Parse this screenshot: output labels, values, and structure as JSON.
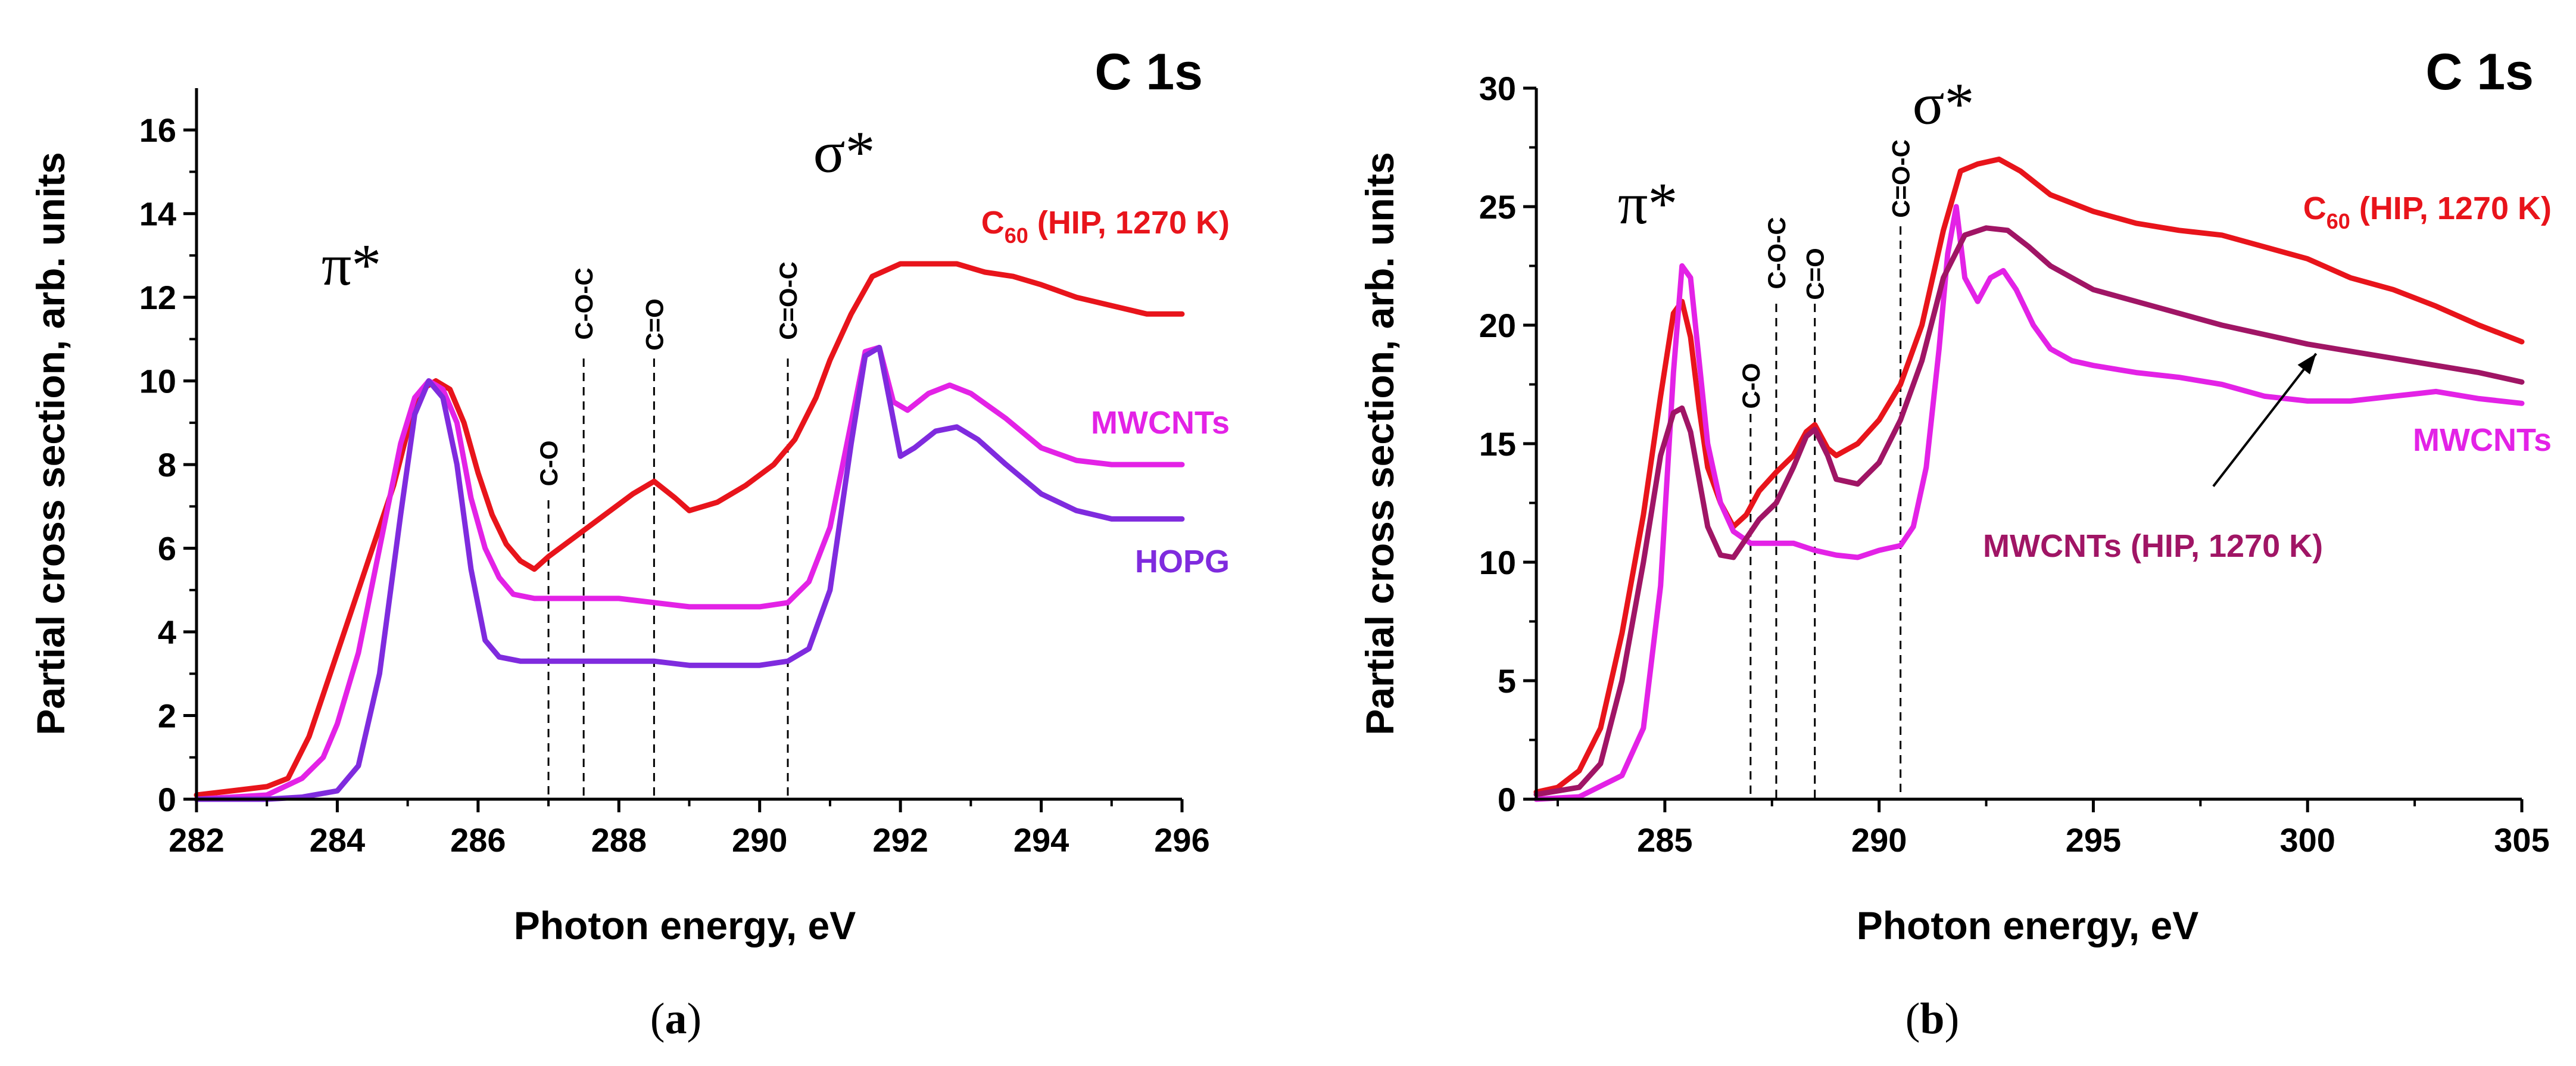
{
  "chart_data": [
    {
      "type": "line",
      "panel": "a",
      "title": "C 1s",
      "xlabel": "Photon energy, eV",
      "ylabel": "Partial cross section, arb. units",
      "xlim": [
        282,
        296
      ],
      "ylim": [
        0,
        17
      ],
      "xticks": [
        282,
        284,
        286,
        288,
        290,
        292,
        294,
        296
      ],
      "yticks": [
        0,
        2,
        4,
        6,
        8,
        10,
        12,
        14,
        16
      ],
      "peak_labels": [
        {
          "text": "π*",
          "x": 284.2,
          "y": 12.3
        },
        {
          "text": "σ*",
          "x": 291.2,
          "y": 15.0
        }
      ],
      "vlines": [
        {
          "label": "C-O",
          "x": 287.0
        },
        {
          "label": "C-O-C",
          "x": 287.5
        },
        {
          "label": "C=O",
          "x": 288.5
        },
        {
          "label": "C=O-C",
          "x": 290.4
        }
      ],
      "series": [
        {
          "name": "C60 (HIP, 1270 K)",
          "label_main": "C",
          "label_sub": "60",
          "label_rest": " (HIP, 1270  K)",
          "color": "#e8141b",
          "x": [
            282.0,
            282.5,
            283.0,
            283.3,
            283.6,
            283.9,
            284.2,
            284.5,
            284.8,
            285.0,
            285.2,
            285.4,
            285.6,
            285.8,
            286.0,
            286.2,
            286.4,
            286.6,
            286.8,
            287.0,
            287.4,
            287.8,
            288.2,
            288.5,
            288.8,
            289.0,
            289.4,
            289.8,
            290.2,
            290.5,
            290.8,
            291.0,
            291.3,
            291.6,
            292.0,
            292.4,
            292.8,
            293.2,
            293.6,
            294.0,
            294.5,
            295.0,
            295.5,
            296.0
          ],
          "y": [
            0.1,
            0.2,
            0.3,
            0.5,
            1.5,
            3.0,
            4.5,
            6.0,
            7.5,
            8.8,
            9.8,
            10.0,
            9.8,
            9.0,
            7.8,
            6.8,
            6.1,
            5.7,
            5.5,
            5.8,
            6.3,
            6.8,
            7.3,
            7.6,
            7.2,
            6.9,
            7.1,
            7.5,
            8.0,
            8.6,
            9.6,
            10.5,
            11.6,
            12.5,
            12.8,
            12.8,
            12.8,
            12.6,
            12.5,
            12.3,
            12.0,
            11.8,
            11.6,
            11.6
          ]
        },
        {
          "name": "MWCNTs",
          "color": "#e322e6",
          "x": [
            282.0,
            282.5,
            283.0,
            283.5,
            283.8,
            284.0,
            284.3,
            284.6,
            284.9,
            285.1,
            285.3,
            285.5,
            285.7,
            285.9,
            286.1,
            286.3,
            286.5,
            286.8,
            287.2,
            287.6,
            288.0,
            288.5,
            289.0,
            289.5,
            290.0,
            290.4,
            290.7,
            291.0,
            291.3,
            291.5,
            291.7,
            291.9,
            292.1,
            292.4,
            292.7,
            293.0,
            293.5,
            294.0,
            294.5,
            295.0,
            295.5,
            296.0
          ],
          "y": [
            0.0,
            0.05,
            0.1,
            0.5,
            1.0,
            1.8,
            3.5,
            6.0,
            8.5,
            9.6,
            10.0,
            9.8,
            9.0,
            7.2,
            6.0,
            5.3,
            4.9,
            4.8,
            4.8,
            4.8,
            4.8,
            4.7,
            4.6,
            4.6,
            4.6,
            4.7,
            5.2,
            6.5,
            9.0,
            10.7,
            10.8,
            9.5,
            9.3,
            9.7,
            9.9,
            9.7,
            9.1,
            8.4,
            8.1,
            8.0,
            8.0,
            8.0
          ]
        },
        {
          "name": "HOPG",
          "color": "#7f2bde",
          "x": [
            282.0,
            282.5,
            283.0,
            283.5,
            284.0,
            284.3,
            284.6,
            284.9,
            285.1,
            285.3,
            285.5,
            285.7,
            285.9,
            286.1,
            286.3,
            286.6,
            287.0,
            287.5,
            288.0,
            288.5,
            289.0,
            289.5,
            290.0,
            290.4,
            290.7,
            291.0,
            291.3,
            291.5,
            291.7,
            291.85,
            292.0,
            292.2,
            292.5,
            292.8,
            293.1,
            293.5,
            294.0,
            294.5,
            295.0,
            295.5,
            296.0
          ],
          "y": [
            0.0,
            0.0,
            0.0,
            0.05,
            0.2,
            0.8,
            3.0,
            6.8,
            9.2,
            10.0,
            9.6,
            8.0,
            5.5,
            3.8,
            3.4,
            3.3,
            3.3,
            3.3,
            3.3,
            3.3,
            3.2,
            3.2,
            3.2,
            3.3,
            3.6,
            5.0,
            8.5,
            10.6,
            10.8,
            9.5,
            8.2,
            8.4,
            8.8,
            8.9,
            8.6,
            8.0,
            7.3,
            6.9,
            6.7,
            6.7,
            6.7
          ]
        }
      ]
    },
    {
      "type": "line",
      "panel": "b",
      "title": "C 1s",
      "xlabel": "Photon energy, eV",
      "ylabel": "Partial cross section, arb. units",
      "xlim": [
        282,
        305
      ],
      "ylim": [
        0,
        30
      ],
      "xticks": [
        285,
        290,
        295,
        300,
        305
      ],
      "yticks": [
        0,
        5,
        10,
        15,
        20,
        25,
        30
      ],
      "peak_labels": [
        {
          "text": "π*",
          "x": 284.6,
          "y": 24.3
        },
        {
          "text": "σ*",
          "x": 291.5,
          "y": 28.5
        }
      ],
      "vlines": [
        {
          "label": "C-O",
          "x": 287.0
        },
        {
          "label": "C-O-C",
          "x": 287.6
        },
        {
          "label": "C=O",
          "x": 288.5
        },
        {
          "label": "C=O-C",
          "x": 290.5
        }
      ],
      "annotation_arrow": {
        "from_x": 297.8,
        "from_y": 13.2,
        "to_x": 300.2,
        "to_y": 18.8
      },
      "series": [
        {
          "name": "C60 (HIP, 1270 K)",
          "label_main": "C",
          "label_sub": "60",
          "label_rest": " (HIP, 1270  K)",
          "color": "#e8141b",
          "x": [
            282.0,
            282.5,
            283.0,
            283.5,
            284.0,
            284.5,
            284.9,
            285.2,
            285.4,
            285.6,
            285.8,
            286.0,
            286.3,
            286.6,
            286.9,
            287.2,
            287.6,
            288.0,
            288.3,
            288.5,
            288.8,
            289.0,
            289.5,
            290.0,
            290.5,
            291.0,
            291.5,
            291.9,
            292.3,
            292.8,
            293.3,
            294.0,
            295.0,
            296.0,
            297.0,
            298.0,
            299.0,
            300.0,
            301.0,
            302.0,
            303.0,
            304.0,
            305.0
          ],
          "y": [
            0.3,
            0.5,
            1.2,
            3.0,
            7.0,
            12.0,
            17.0,
            20.5,
            21.0,
            19.5,
            16.5,
            14.0,
            12.5,
            11.5,
            12.0,
            13.0,
            13.8,
            14.5,
            15.5,
            15.8,
            14.8,
            14.5,
            15.0,
            16.0,
            17.5,
            20.0,
            24.0,
            26.5,
            26.8,
            27.0,
            26.5,
            25.5,
            24.8,
            24.3,
            24.0,
            23.8,
            23.3,
            22.8,
            22.0,
            21.5,
            20.8,
            20.0,
            19.3
          ]
        },
        {
          "name": "MWCNTs",
          "color": "#e322e6",
          "x": [
            282.0,
            283.0,
            284.0,
            284.5,
            284.9,
            285.2,
            285.4,
            285.6,
            285.8,
            286.0,
            286.3,
            286.6,
            287.0,
            287.5,
            288.0,
            288.5,
            289.0,
            289.5,
            290.0,
            290.5,
            290.8,
            291.1,
            291.4,
            291.6,
            291.8,
            292.0,
            292.3,
            292.6,
            292.9,
            293.2,
            293.6,
            294.0,
            294.5,
            295.0,
            296.0,
            297.0,
            298.0,
            299.0,
            300.0,
            301.0,
            302.0,
            303.0,
            304.0,
            305.0
          ],
          "y": [
            0.0,
            0.1,
            1.0,
            3.0,
            9.0,
            18.0,
            22.5,
            22.0,
            18.5,
            15.0,
            12.5,
            11.3,
            10.8,
            10.8,
            10.8,
            10.5,
            10.3,
            10.2,
            10.5,
            10.7,
            11.5,
            14.0,
            19.0,
            23.0,
            25.0,
            22.0,
            21.0,
            22.0,
            22.3,
            21.5,
            20.0,
            19.0,
            18.5,
            18.3,
            18.0,
            17.8,
            17.5,
            17.0,
            16.8,
            16.8,
            17.0,
            17.2,
            16.9,
            16.7
          ]
        },
        {
          "name": "MWCNTs (HIP, 1270 K)",
          "color": "#a01565",
          "x": [
            282.0,
            283.0,
            283.5,
            284.0,
            284.5,
            284.9,
            285.2,
            285.4,
            285.6,
            285.8,
            286.0,
            286.3,
            286.6,
            286.9,
            287.2,
            287.6,
            288.0,
            288.3,
            288.5,
            288.8,
            289.0,
            289.5,
            290.0,
            290.5,
            291.0,
            291.5,
            292.0,
            292.5,
            293.0,
            293.5,
            294.0,
            295.0,
            296.0,
            297.0,
            298.0,
            299.0,
            300.0,
            301.0,
            302.0,
            303.0,
            304.0,
            305.0
          ],
          "y": [
            0.2,
            0.5,
            1.5,
            5.0,
            10.0,
            14.5,
            16.3,
            16.5,
            15.5,
            13.5,
            11.5,
            10.3,
            10.2,
            11.0,
            11.8,
            12.5,
            14.0,
            15.3,
            15.6,
            14.5,
            13.5,
            13.3,
            14.2,
            16.0,
            18.5,
            22.0,
            23.8,
            24.1,
            24.0,
            23.3,
            22.5,
            21.5,
            21.0,
            20.5,
            20.0,
            19.6,
            19.2,
            18.9,
            18.6,
            18.3,
            18.0,
            17.6
          ]
        }
      ]
    }
  ],
  "legend": {
    "a_c60_main": "C",
    "a_c60_sub": "60",
    "a_c60_rest": " (HIP, 1270  K)",
    "a_mwcnts": "MWCNTs",
    "a_hopg": "HOPG",
    "b_c60_main": "C",
    "b_c60_sub": "60",
    "b_c60_rest": " (HIP, 1270  K)",
    "b_mwcnts": "MWCNTs",
    "b_mwcnts_hip": "MWCNTs (HIP, 1270  K)"
  },
  "panel_labels": {
    "a": {
      "open": "(",
      "letter": "a",
      "close": ")"
    },
    "b": {
      "open": "(",
      "letter": "b",
      "close": ")"
    }
  }
}
